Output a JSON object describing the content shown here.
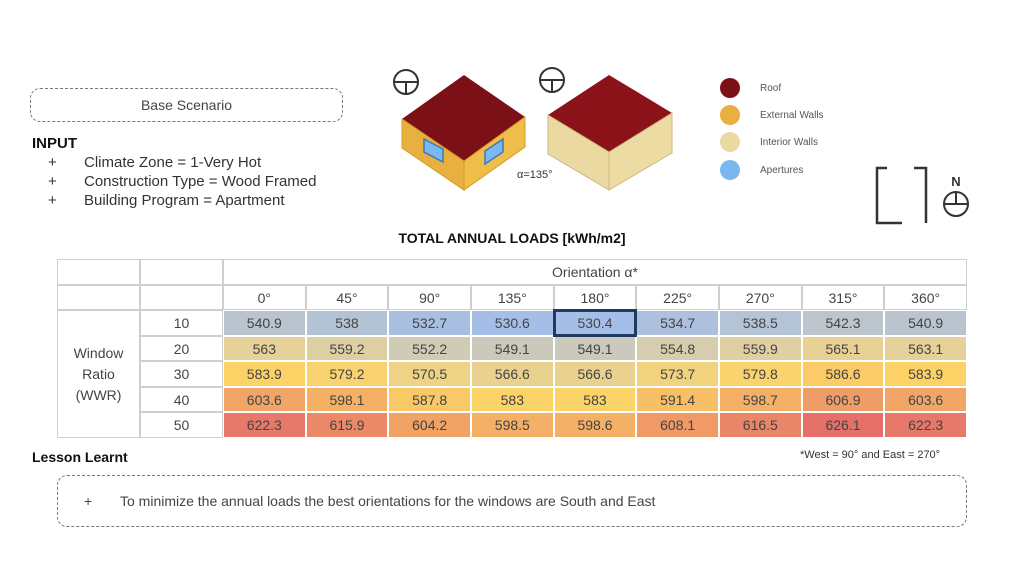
{
  "scenario": "Base Scenario",
  "input": {
    "title": "INPUT",
    "items": [
      "Climate Zone = 1-Very Hot",
      "Construction Type = Wood Framed",
      "Building Program = Apartment"
    ],
    "bullet": "+"
  },
  "diagram": {
    "angle_label": "α=135°"
  },
  "legend": [
    {
      "label": "Roof",
      "color": "#7b1116"
    },
    {
      "label": "External Walls",
      "color": "#e7b040"
    },
    {
      "label": "Interior Walls",
      "color": "#ead9a0"
    },
    {
      "label": "Apertures",
      "color": "#79b8f0"
    }
  ],
  "compass": {
    "label": "N"
  },
  "chart_data": {
    "type": "table",
    "title": "TOTAL ANNUAL LOADS [kWh/m2]",
    "column_header": "Orientation α*",
    "row_header": [
      "Window",
      "Ratio",
      "(WWR)"
    ],
    "columns": [
      "0°",
      "45°",
      "90°",
      "135°",
      "180°",
      "225°",
      "270°",
      "315°",
      "360°"
    ],
    "rows": [
      "10",
      "20",
      "30",
      "40",
      "50"
    ],
    "values": [
      [
        "540.9",
        "538",
        "532.7",
        "530.6",
        "530.4",
        "534.7",
        "538.5",
        "542.3",
        "540.9"
      ],
      [
        "563",
        "559.2",
        "552.2",
        "549.1",
        "549.1",
        "554.8",
        "559.9",
        "565.1",
        "563.1"
      ],
      [
        "583.9",
        "579.2",
        "570.5",
        "566.6",
        "566.6",
        "573.7",
        "579.8",
        "586.6",
        "583.9"
      ],
      [
        "603.6",
        "598.1",
        "587.8",
        "583",
        "583",
        "591.4",
        "598.7",
        "606.9",
        "603.6"
      ],
      [
        "622.3",
        "615.9",
        "604.2",
        "598.5",
        "598.6",
        "608.1",
        "616.5",
        "626.1",
        "622.3"
      ]
    ],
    "highlight": {
      "row": "10",
      "column": "180°"
    },
    "footnote": "*West = 90° and East = 270°"
  },
  "lesson": {
    "title": "Lesson Learnt",
    "bullet": "+",
    "text": "To minimize the annual loads the best orientations for the windows are South and East"
  }
}
